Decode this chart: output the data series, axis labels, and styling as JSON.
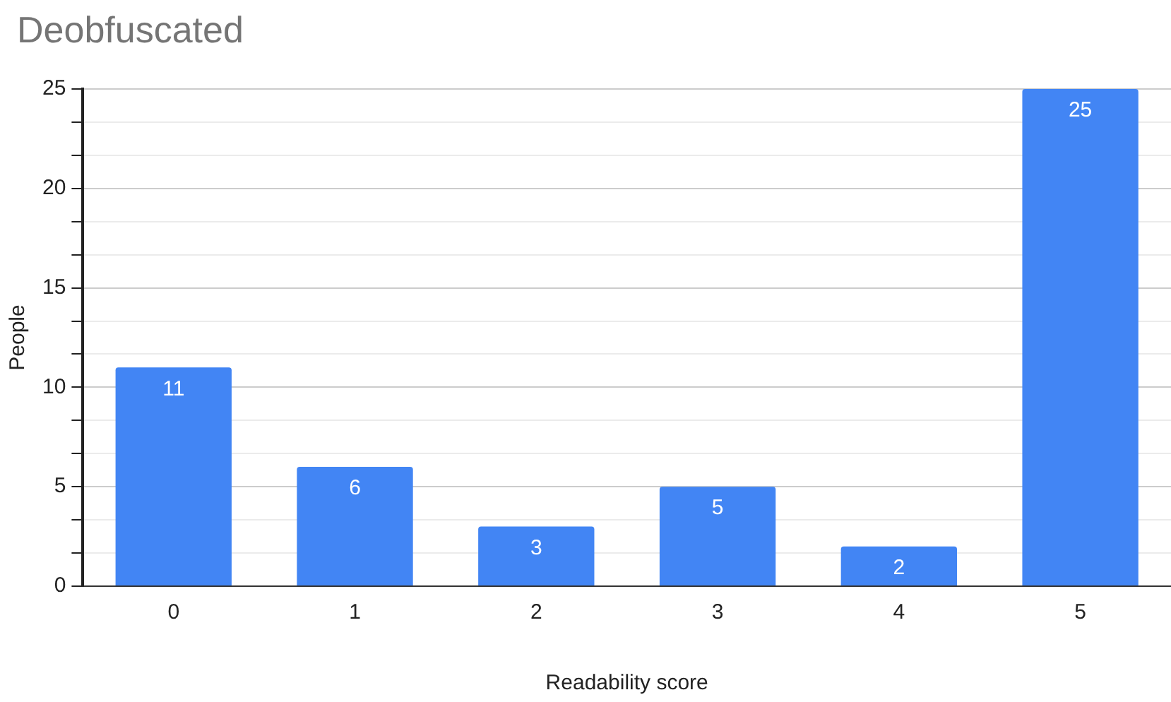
{
  "chart_data": {
    "type": "bar",
    "title": "Deobfuscated",
    "xlabel": "Readability score",
    "ylabel": "People",
    "categories": [
      "0",
      "1",
      "2",
      "3",
      "4",
      "5"
    ],
    "values": [
      11,
      6,
      3,
      5,
      2,
      25
    ],
    "color": "#4285f4",
    "ylim": [
      0,
      25
    ],
    "yticks": [
      0,
      {
        "value": 1.667,
        "label": null
      },
      {
        "value": 3.333,
        "label": null
      },
      5,
      {
        "value": 6.667,
        "label": null
      },
      {
        "value": 8.333,
        "label": null
      },
      10,
      {
        "value": 11.667,
        "label": null
      },
      {
        "value": 13.333,
        "label": null
      },
      15,
      {
        "value": 16.667,
        "label": null
      },
      {
        "value": 18.333,
        "label": null
      },
      20,
      {
        "value": 21.667,
        "label": null
      },
      {
        "value": 23.333,
        "label": null
      },
      25
    ],
    "grid": "y",
    "data_labels": true,
    "legend": false
  }
}
